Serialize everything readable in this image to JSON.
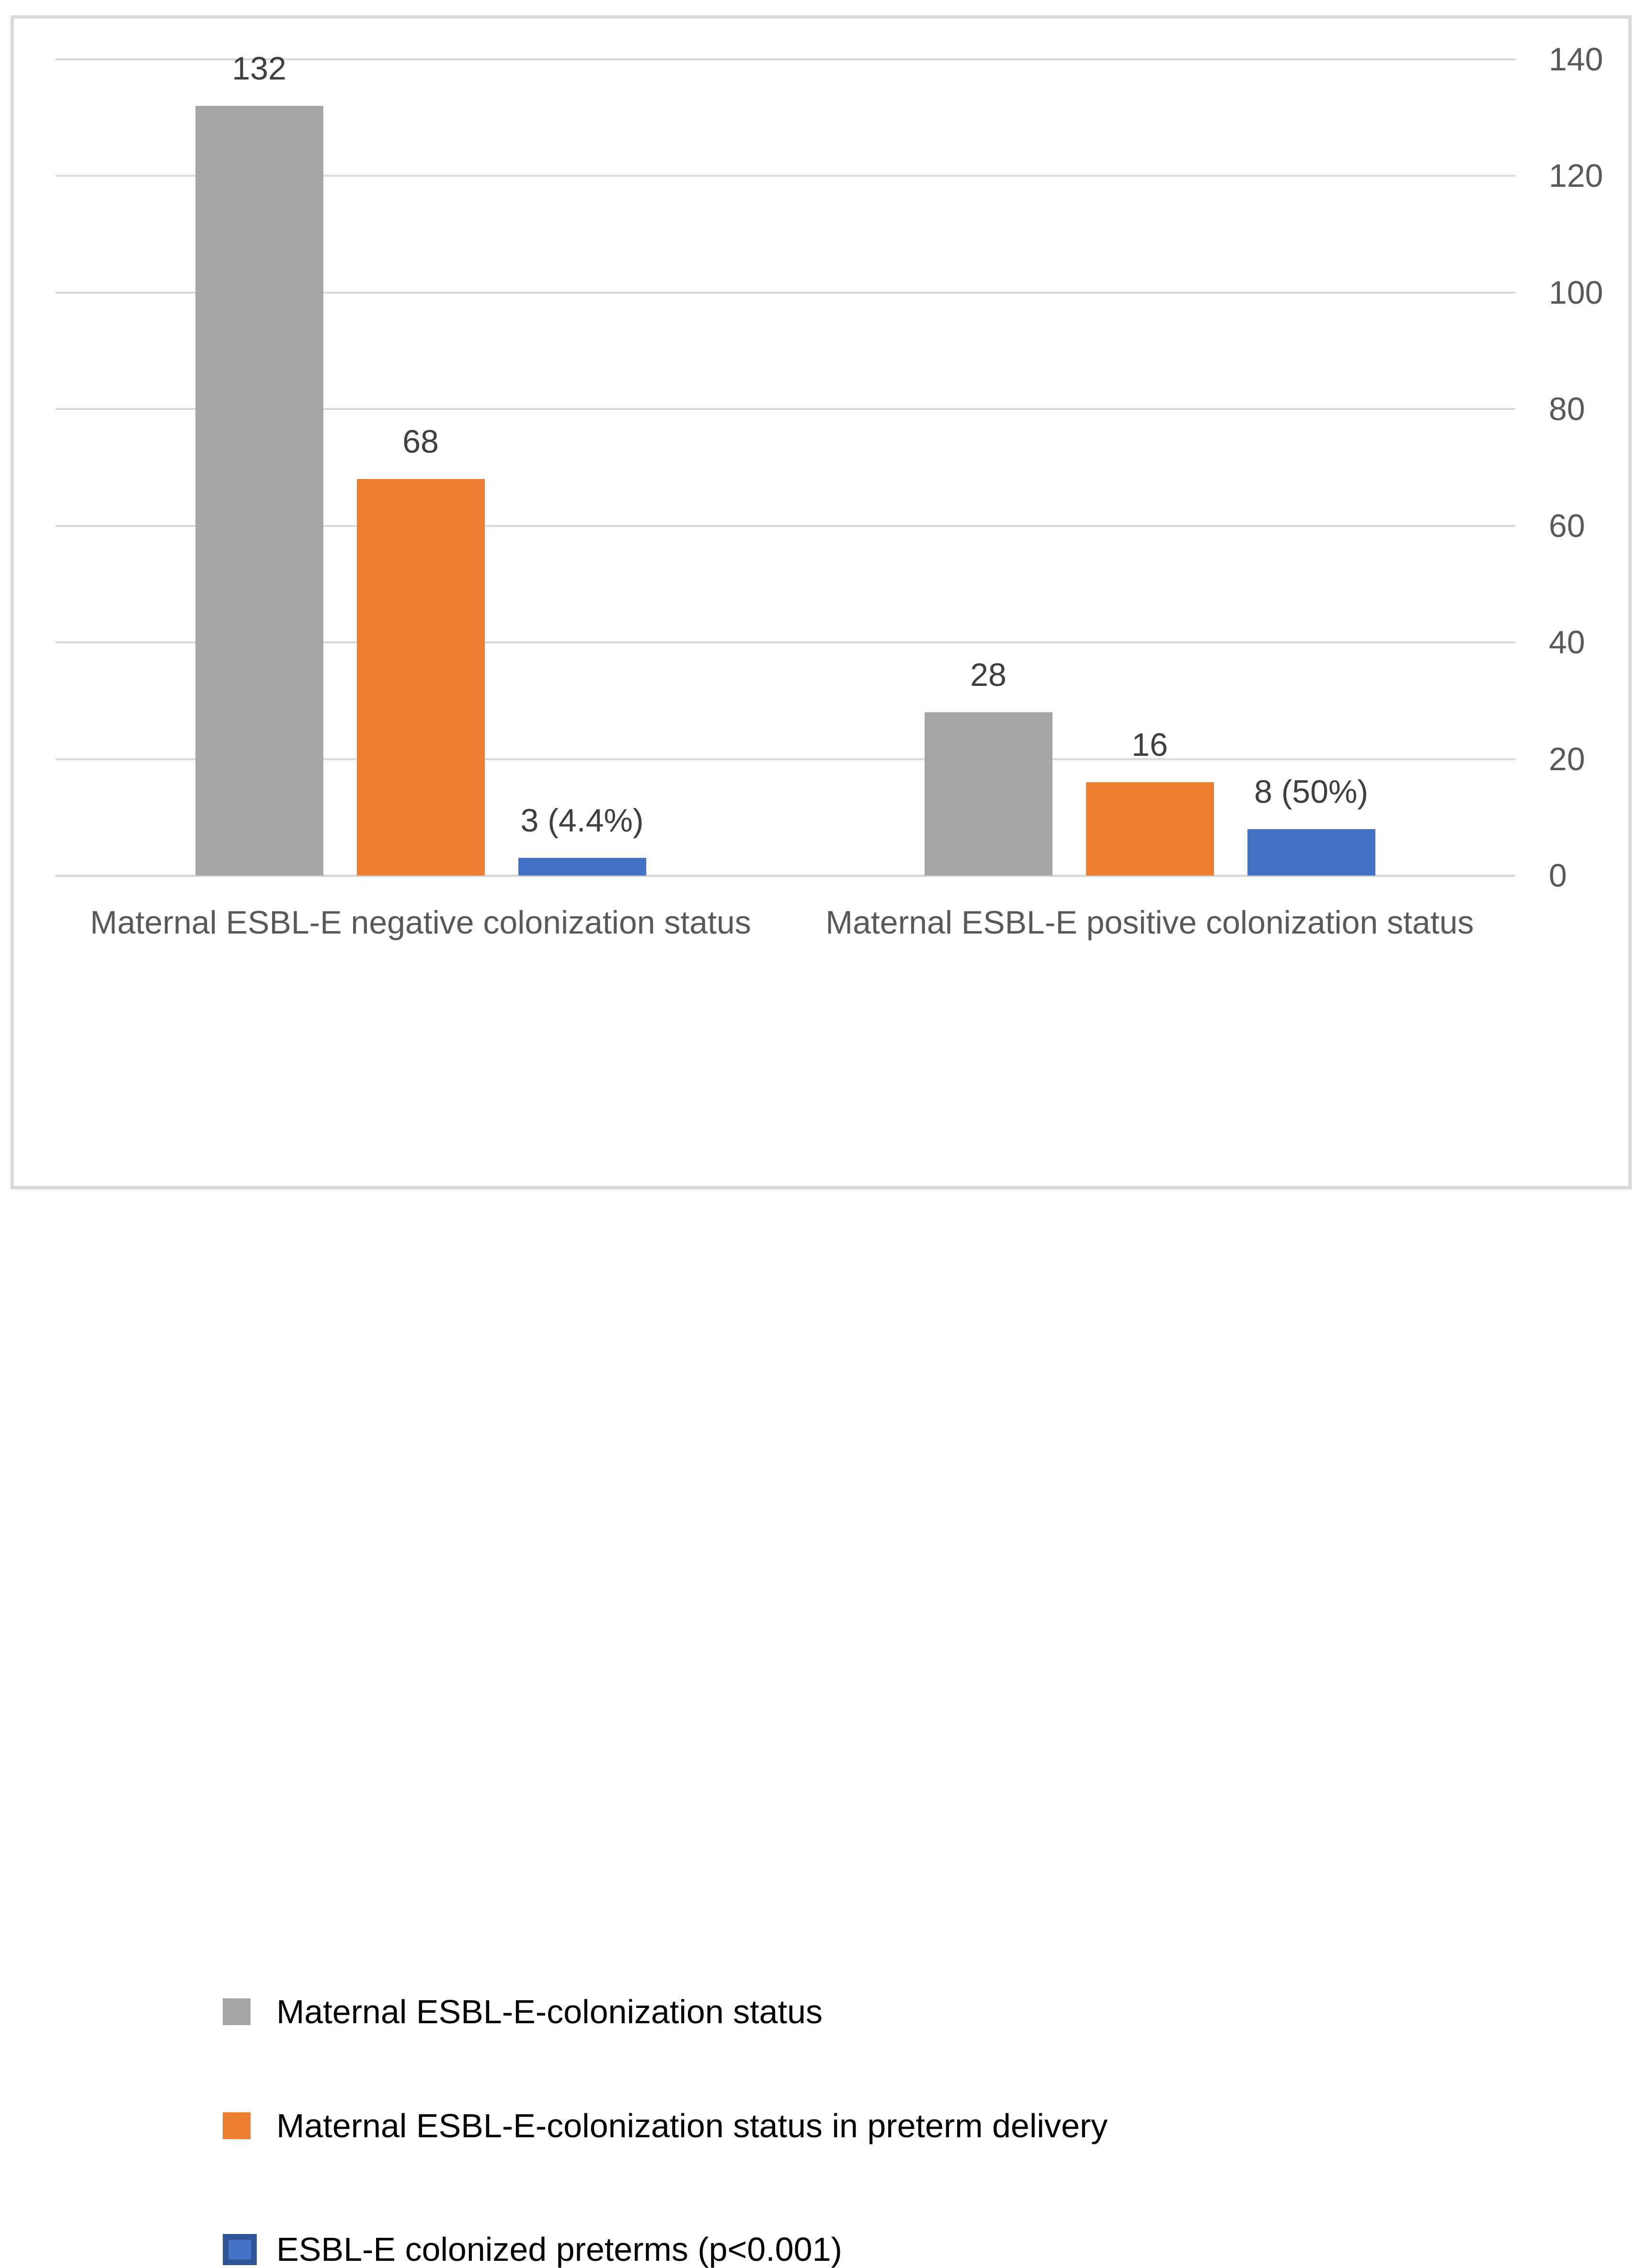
{
  "figure": {
    "background_color": "#FFFFFF",
    "border_color": "#D9D9D9"
  },
  "chart_data": {
    "type": "bar",
    "title": "",
    "xlabel": "",
    "ylabel": "",
    "categories": [
      "Maternal ESBL-E negative colonization status",
      "Maternal ESBL-E positive colonization status"
    ],
    "series": [
      {
        "name": "Maternal ESBL-E-colonization status",
        "color": "#A5A5A5",
        "values": [
          132,
          28
        ],
        "data_labels": [
          "132",
          "28"
        ]
      },
      {
        "name": "Maternal ESBL-E-colonization status in preterm delivery",
        "color": "#ED7D31",
        "values": [
          68,
          16
        ],
        "data_labels": [
          "68",
          "16"
        ]
      },
      {
        "name": "ESBL-E colonized preterms (p<0.001)",
        "color": "#4472C4",
        "legend_border_color": "#2F5597",
        "values": [
          3,
          8
        ],
        "data_labels": [
          "3 (4.4%)",
          "8 (50%)"
        ]
      }
    ],
    "ylim": [
      0,
      140
    ],
    "yticks": [
      0,
      20,
      40,
      60,
      80,
      100,
      120,
      140
    ],
    "grid": true,
    "gridline_color": "#D9D9D9",
    "axis_side": "right",
    "legend_position": "bottom-left",
    "text_colors": {
      "axis_tick": "#595959",
      "category": "#595959",
      "data_label": "#3F3F3F",
      "legend": "#000000"
    }
  }
}
